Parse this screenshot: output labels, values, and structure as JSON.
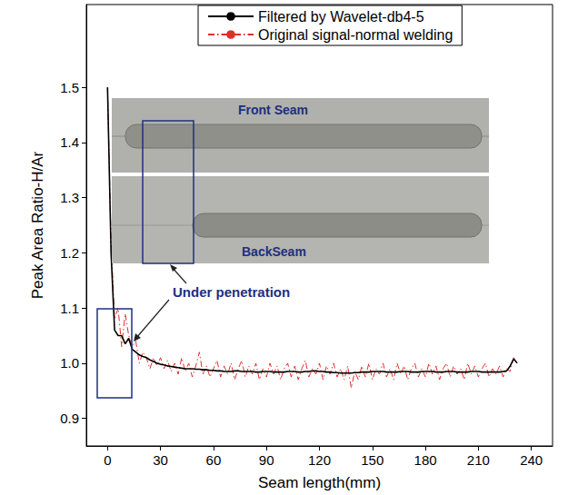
{
  "chart_data": {
    "type": "line",
    "x_label": "Seam length(mm)",
    "y_label": "Peak Area Ratio-H/Ar",
    "xlim": [
      -12,
      252
    ],
    "xticks": [
      0,
      30,
      60,
      90,
      120,
      150,
      180,
      210,
      240
    ],
    "ylim": [
      0.85,
      1.65
    ],
    "yticks": [
      0.9,
      {
        "value": 1,
        "label": "1.0"
      },
      1.1,
      1.2,
      1.3,
      1.4,
      1.5
    ],
    "grid": false,
    "legend": "top",
    "annotations": [
      "Front Seam",
      "BackSeam",
      "Under penetration"
    ],
    "x": [
      0,
      2,
      4,
      6,
      8,
      10,
      12,
      14,
      16,
      18,
      20,
      22,
      24,
      26,
      28,
      30,
      32,
      34,
      36,
      38,
      40,
      42,
      44,
      46,
      48,
      50,
      52,
      54,
      56,
      58,
      60,
      62,
      64,
      66,
      68,
      70,
      72,
      74,
      76,
      78,
      80,
      82,
      84,
      86,
      88,
      90,
      92,
      94,
      96,
      98,
      100,
      102,
      104,
      106,
      108,
      110,
      112,
      114,
      116,
      118,
      120,
      122,
      124,
      126,
      128,
      130,
      132,
      134,
      136,
      138,
      140,
      142,
      144,
      146,
      148,
      150,
      152,
      154,
      156,
      158,
      160,
      162,
      164,
      166,
      168,
      170,
      172,
      174,
      176,
      178,
      180,
      182,
      184,
      186,
      188,
      190,
      192,
      194,
      196,
      198,
      200,
      202,
      204,
      206,
      208,
      210,
      212,
      214,
      216,
      218,
      220,
      222,
      224,
      226,
      228,
      230,
      232
    ],
    "series": [
      {
        "name": "Filtered by Wavelet-db4-5",
        "color": "#000000",
        "line_style": "solid",
        "marker": "none",
        "values": [
          1.5,
          1.2,
          1.06,
          1.05,
          1.05,
          1.035,
          1.045,
          1.025,
          1.02,
          1.015,
          1.012,
          1.01,
          1.006,
          1.003,
          1.0,
          0.998,
          0.997,
          0.995,
          0.994,
          0.993,
          0.992,
          0.991,
          0.99,
          0.99,
          0.99,
          0.989,
          0.989,
          0.988,
          0.988,
          0.987,
          0.987,
          0.986,
          0.986,
          0.985,
          0.985,
          0.985,
          0.986,
          0.986,
          0.985,
          0.985,
          0.985,
          0.985,
          0.984,
          0.984,
          0.985,
          0.985,
          0.985,
          0.984,
          0.984,
          0.984,
          0.984,
          0.985,
          0.985,
          0.985,
          0.984,
          0.984,
          0.985,
          0.985,
          0.986,
          0.986,
          0.985,
          0.985,
          0.984,
          0.984,
          0.983,
          0.983,
          0.982,
          0.982,
          0.982,
          0.982,
          0.983,
          0.983,
          0.984,
          0.984,
          0.984,
          0.985,
          0.985,
          0.985,
          0.985,
          0.984,
          0.984,
          0.984,
          0.984,
          0.985,
          0.985,
          0.985,
          0.984,
          0.984,
          0.984,
          0.985,
          0.985,
          0.985,
          0.985,
          0.984,
          0.984,
          0.984,
          0.985,
          0.985,
          0.985,
          0.984,
          0.984,
          0.984,
          0.984,
          0.985,
          0.985,
          0.985,
          0.984,
          0.984,
          0.984,
          0.984,
          0.984,
          0.984,
          0.985,
          0.986,
          0.995,
          1.008,
          1.0
        ]
      },
      {
        "name": "Original signal-normal welding",
        "color": "#e0302a",
        "line_style": "dashdot",
        "marker": "none",
        "values": [
          1.5,
          1.22,
          1.08,
          1.1,
          1.03,
          1.09,
          1.05,
          1.03,
          1.04,
          1.0,
          1.02,
          1.01,
          0.99,
          1.01,
          0.995,
          1.01,
          0.99,
          1.005,
          0.985,
          1.0,
          0.98,
          1.01,
          0.985,
          1.0,
          0.975,
          0.995,
          1.02,
          0.98,
          0.995,
          0.975,
          0.99,
          1.005,
          0.975,
          0.995,
          0.98,
          1.0,
          0.97,
          0.99,
          1.005,
          0.975,
          0.995,
          0.98,
          1.0,
          0.97,
          0.99,
          0.975,
          1.0,
          0.98,
          0.995,
          0.97,
          0.99,
          1.0,
          0.975,
          0.995,
          0.97,
          0.99,
          1.005,
          0.975,
          0.99,
          0.98,
          1.0,
          0.97,
          0.995,
          0.98,
          1.0,
          0.975,
          0.99,
          0.97,
          0.995,
          0.955,
          0.985,
          0.97,
          0.995,
          0.975,
          1.0,
          0.97,
          0.99,
          0.98,
          1.0,
          0.975,
          0.99,
          0.97,
          1.0,
          0.98,
          0.995,
          0.97,
          0.99,
          1.0,
          0.975,
          0.99,
          0.975,
          1.0,
          0.98,
          0.995,
          0.97,
          0.99,
          1.0,
          0.975,
          0.995,
          0.98,
          0.99,
          0.97,
          1.0,
          0.98,
          0.995,
          0.975,
          0.99,
          1.0,
          0.975,
          0.99,
          0.98,
          0.995,
          0.975,
          0.99,
          0.985,
          1.01,
          1.0
        ]
      }
    ]
  }
}
